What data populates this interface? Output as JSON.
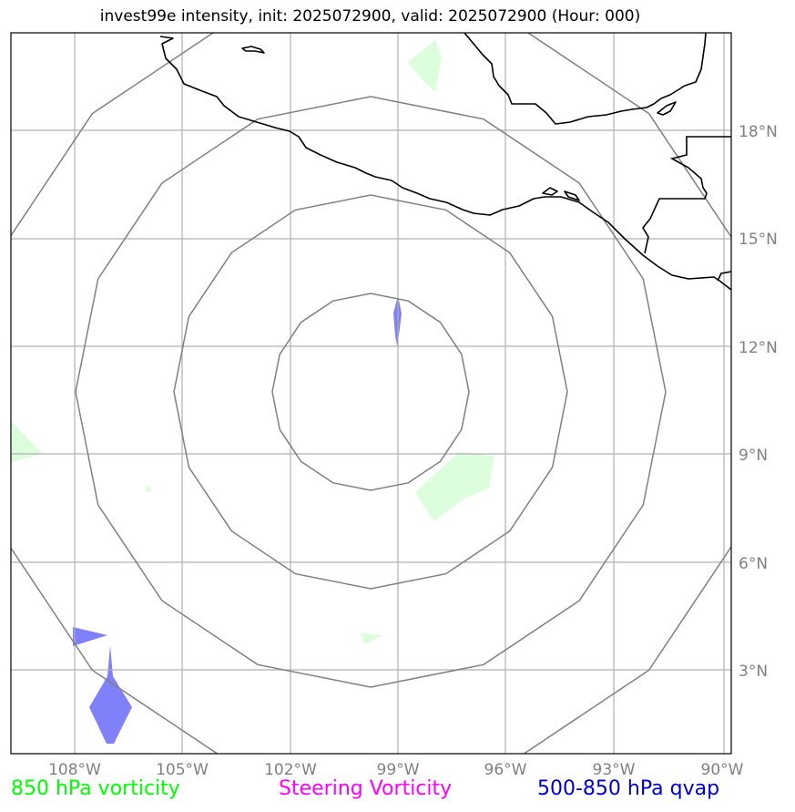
{
  "title": "invest99e intensity, init: 2025072900, valid: 2025072900 (Hour: 000)",
  "map": {
    "lat_labels": [
      "18°N",
      "15°N",
      "12°N",
      "9°N",
      "6°N",
      "3°N"
    ],
    "lon_labels": [
      "108°W",
      "105°W",
      "102°W",
      "99°W",
      "96°W",
      "93°W",
      "90°W"
    ],
    "range_rings": 4
  },
  "legend": [
    {
      "label": "850 hPa vorticity",
      "color": "#00ff00"
    },
    {
      "label": "Steering Vorticity",
      "color": "#ff00ff"
    },
    {
      "label": "500-850 hPa qvap",
      "color": "#0000cc"
    }
  ],
  "colors": {
    "vorticity_fill": "#ddfedd",
    "qvap_fill": "#8080f8",
    "ring": "#808080",
    "grid": "#b0b0b0",
    "coast": "#000000"
  }
}
